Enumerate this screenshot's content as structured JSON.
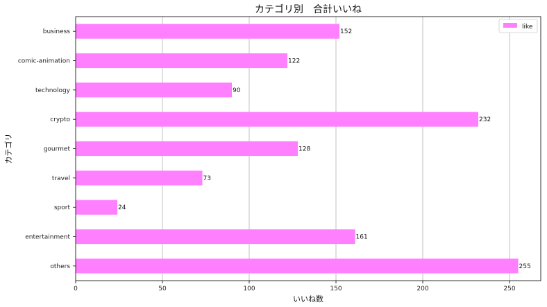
{
  "chart_data": {
    "type": "bar",
    "orientation": "horizontal",
    "title": "カテゴリ別　合計いいね",
    "xlabel": "いいね数",
    "ylabel": "カテゴリ",
    "categories": [
      "business",
      "comic-animation",
      "technology",
      "crypto",
      "gourmet",
      "travel",
      "sport",
      "entertainment",
      "others"
    ],
    "series": [
      {
        "name": "like",
        "values": [
          152,
          122,
          90,
          232,
          128,
          73,
          24,
          161,
          255
        ]
      }
    ],
    "xlim": [
      0,
      268
    ],
    "xticks": [
      0,
      50,
      100,
      150,
      200,
      250
    ],
    "grid": "x",
    "legend_position": "top-right",
    "bar_color": "#ff80ff",
    "grid_color": "#b0b0b0"
  }
}
